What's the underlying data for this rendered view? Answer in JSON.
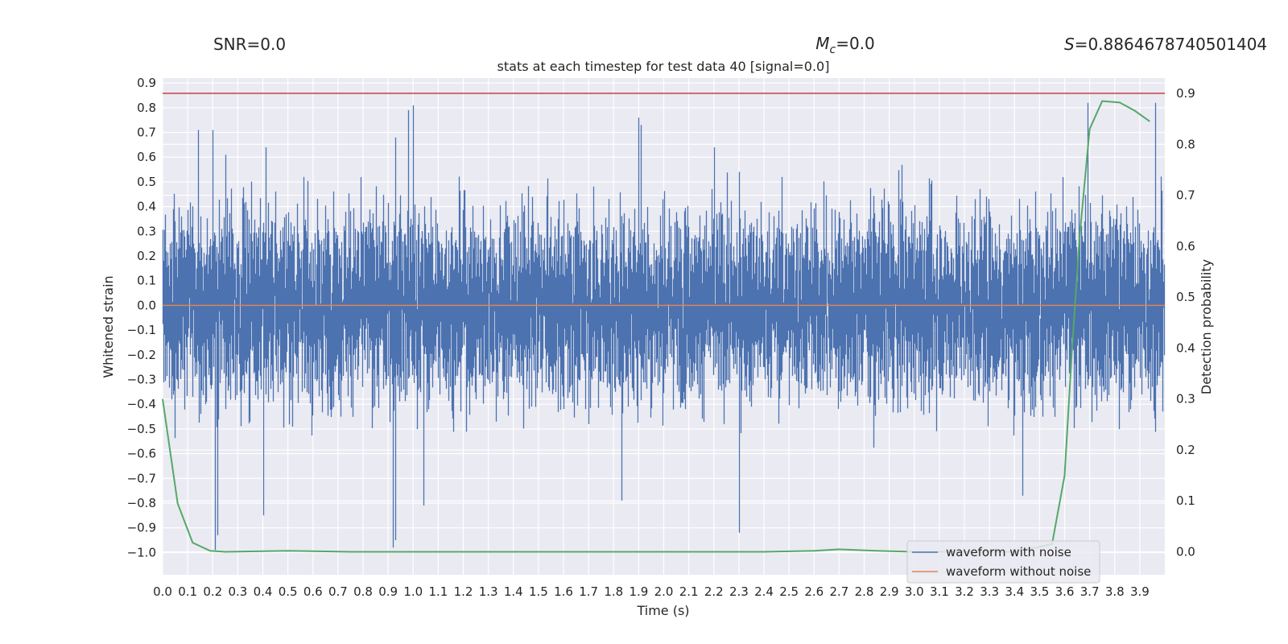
{
  "header": {
    "snr_text": "SNR=0.0",
    "mc_symbol": "M",
    "mc_sub": "c",
    "mc_value": "=0.0",
    "s_symbol": "S",
    "s_value": "=0.8864678740501404",
    "title": "stats at each timestep for test data 40 [signal=0.0]"
  },
  "colors": {
    "plot_bg": "#eaeaf2",
    "grid": "#ffffff",
    "noise": "#4c72b0",
    "clean": "#dd8452",
    "prob": "#55a868",
    "threshold": "#c44e52"
  },
  "chart_data": {
    "type": "line",
    "xlabel": "Time (s)",
    "ylabel": "Whitened strain",
    "y2label": "Detection probability",
    "xlim": [
      0.0,
      4.0
    ],
    "ylim": [
      -1.09,
      0.92
    ],
    "y2lim": [
      -0.045,
      0.93
    ],
    "xticks": [
      "0.0",
      "0.1",
      "0.2",
      "0.3",
      "0.4",
      "0.5",
      "0.6",
      "0.7",
      "0.8",
      "0.9",
      "1.0",
      "1.1",
      "1.2",
      "1.3",
      "1.4",
      "1.5",
      "1.6",
      "1.7",
      "1.8",
      "1.9",
      "2.0",
      "2.1",
      "2.2",
      "2.3",
      "2.4",
      "2.5",
      "2.6",
      "2.7",
      "2.8",
      "2.9",
      "3.0",
      "3.1",
      "3.2",
      "3.3",
      "3.4",
      "3.5",
      "3.6",
      "3.7",
      "3.8",
      "3.9"
    ],
    "yticks": [
      "0.9",
      "0.8",
      "0.7",
      "0.6",
      "0.5",
      "0.4",
      "0.3",
      "0.2",
      "0.1",
      "0.0",
      "−0.1",
      "−0.2",
      "−0.3",
      "−0.4",
      "−0.5",
      "−0.6",
      "−0.7",
      "−0.8",
      "−0.9",
      "−1.0"
    ],
    "y2ticks": [
      "0.9",
      "0.8",
      "0.7",
      "0.6",
      "0.5",
      "0.4",
      "0.3",
      "0.2",
      "0.1",
      "0.0"
    ],
    "legend_position": "lower-right",
    "legend": [
      "waveform with noise",
      "waveform without noise"
    ],
    "threshold_y2": 0.9,
    "series": [
      {
        "name": "waveform with noise",
        "axis": "left",
        "sample_rate_hz": 2048,
        "note_values": "dense noise; notable spike extremes",
        "peaks": [
          {
            "x": 0.14,
            "y": 0.71
          },
          {
            "x": 0.2,
            "y": 0.71
          },
          {
            "x": 0.25,
            "y": 0.61
          },
          {
            "x": 0.41,
            "y": 0.64
          },
          {
            "x": 0.93,
            "y": 0.68
          },
          {
            "x": 0.98,
            "y": 0.79
          },
          {
            "x": 1.0,
            "y": 0.81
          },
          {
            "x": 1.9,
            "y": 0.76
          },
          {
            "x": 1.91,
            "y": 0.73
          },
          {
            "x": 2.2,
            "y": 0.64
          },
          {
            "x": 3.69,
            "y": 0.82
          },
          {
            "x": 3.96,
            "y": 0.82
          }
        ],
        "troughs": [
          {
            "x": 0.21,
            "y": -0.99
          },
          {
            "x": 0.22,
            "y": -0.93
          },
          {
            "x": 0.4,
            "y": -0.85
          },
          {
            "x": 0.92,
            "y": -0.98
          },
          {
            "x": 0.93,
            "y": -0.95
          },
          {
            "x": 1.04,
            "y": -0.81
          },
          {
            "x": 1.83,
            "y": -0.79
          },
          {
            "x": 2.3,
            "y": -0.92
          },
          {
            "x": 3.43,
            "y": -0.77
          }
        ]
      },
      {
        "name": "waveform without noise",
        "axis": "left",
        "x": [
          0.0,
          4.0
        ],
        "y": [
          0.0,
          0.0
        ]
      },
      {
        "name": "",
        "axis": "right",
        "x": [
          0.0,
          0.06,
          0.12,
          0.19,
          0.25,
          0.5,
          0.75,
          1.0,
          1.5,
          2.0,
          2.4,
          2.6,
          2.7,
          2.75,
          2.85,
          3.0,
          3.2,
          3.4,
          3.55,
          3.6,
          3.63,
          3.66,
          3.7,
          3.75,
          3.82,
          3.88,
          3.94
        ],
        "y": [
          0.3,
          0.095,
          0.018,
          0.002,
          0.0,
          0.002,
          0.0,
          0.0,
          0.0,
          0.0,
          0.0,
          0.002,
          0.005,
          0.004,
          0.002,
          0.0,
          0.0,
          0.0,
          0.015,
          0.15,
          0.4,
          0.62,
          0.83,
          0.885,
          0.882,
          0.866,
          0.845
        ]
      }
    ]
  }
}
